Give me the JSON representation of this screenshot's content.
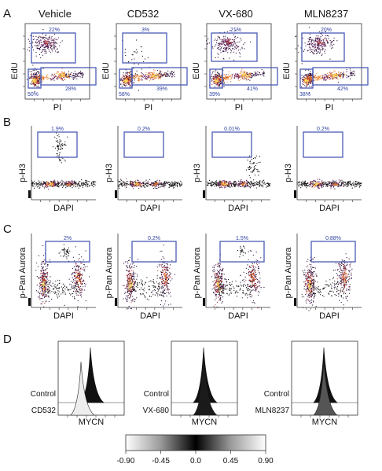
{
  "panel_letters": [
    "A",
    "B",
    "C",
    "D"
  ],
  "conditions": [
    "Vehicle",
    "CD532",
    "VX-680",
    "MLN8237"
  ],
  "row_a": {
    "ylabel": "EdU",
    "xlabel": "PI",
    "panels": [
      {
        "top": "22%",
        "bl": "50%",
        "br": "28%"
      },
      {
        "top": "3%",
        "bl": "58%",
        "br": "39%"
      },
      {
        "top": "21%",
        "bl": "39%",
        "br": "41%"
      },
      {
        "top": "20%",
        "bl": "38%",
        "br": "42%"
      }
    ]
  },
  "row_b": {
    "ylabel": "p-H3",
    "xlabel": "DAPI",
    "percents": [
      "1.9%",
      "0.2%",
      "0.01%",
      "0.2%"
    ]
  },
  "row_c": {
    "ylabel": "p-Pan Aurora",
    "xlabel": "DAPI",
    "percents": [
      "2%",
      "0.2%",
      "1.5%",
      "0.88%"
    ]
  },
  "row_d": {
    "xlabel": "MYCN",
    "panels": [
      {
        "upper": "Control",
        "lower": "CD532"
      },
      {
        "upper": "Control",
        "lower": "VX-680"
      },
      {
        "upper": "Control",
        "lower": "MLN8237"
      }
    ]
  },
  "colorbar": {
    "ticks": [
      "-0.90",
      "-0.45",
      "0.0",
      "0.45",
      "0.90"
    ],
    "gradient": [
      "#ffffff",
      "#9a9a9a",
      "#000000",
      "#9a9a9a",
      "#ffffff"
    ]
  },
  "colors": {
    "gate": "#4a5bb5",
    "label": "#2b3fa0",
    "density": [
      "#2a0a3a",
      "#6a1b5a",
      "#b83a3a",
      "#ee7a22",
      "#ffd95a"
    ]
  }
}
